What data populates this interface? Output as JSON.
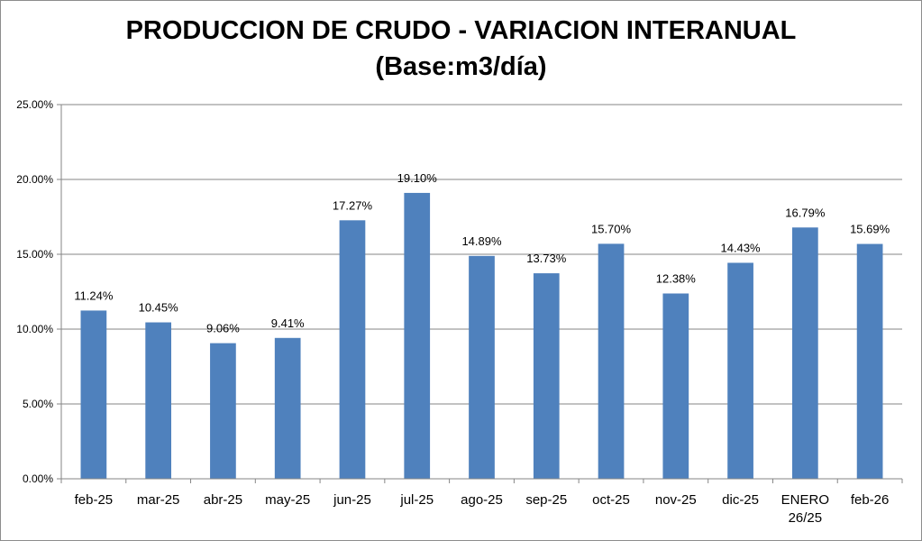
{
  "chart_data": {
    "type": "bar",
    "title": "PRODUCCION DE CRUDO - VARIACION INTERANUAL",
    "subtitle": "(Base:m3/día)",
    "categories": [
      "feb-25",
      "mar-25",
      "abr-25",
      "may-25",
      "jun-25",
      "jul-25",
      "ago-25",
      "sep-25",
      "oct-25",
      "nov-25",
      "dic-25",
      "ENERO 26/25",
      "feb-26"
    ],
    "values": [
      11.24,
      10.45,
      9.06,
      9.41,
      17.27,
      19.1,
      14.89,
      13.73,
      15.7,
      12.38,
      14.43,
      16.79,
      15.69
    ],
    "data_labels": [
      "11.24%",
      "10.45%",
      "9.06%",
      "9.41%",
      "17.27%",
      "19.10%",
      "14.89%",
      "13.73%",
      "15.70%",
      "12.38%",
      "14.43%",
      "16.79%",
      "15.69%"
    ],
    "y_ticks": [
      0,
      5,
      10,
      15,
      20,
      25
    ],
    "y_tick_labels": [
      "0.00%",
      "5.00%",
      "10.00%",
      "15.00%",
      "20.00%",
      "25.00%"
    ],
    "ylim": [
      0,
      25
    ],
    "grid": true,
    "legend": "none",
    "bar_color": "#4f81bd",
    "gridline_color": "#868686"
  }
}
